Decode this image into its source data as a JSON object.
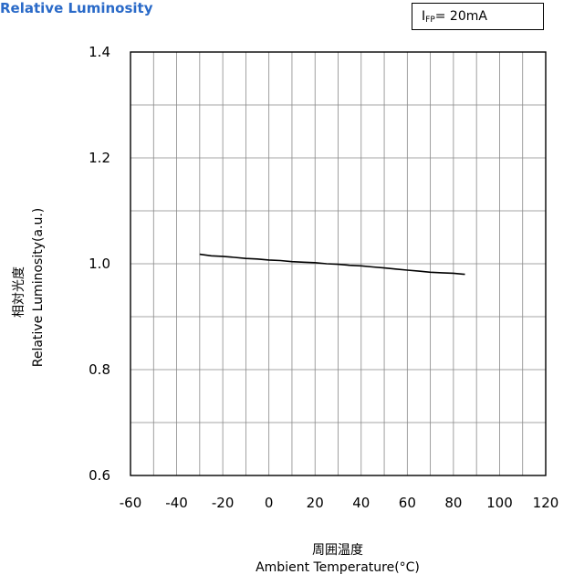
{
  "title": "Relative Luminosity",
  "condition": {
    "symbol": "I",
    "subscript": "FP",
    "value": "= 20mA"
  },
  "chart_data": {
    "type": "line",
    "title": "Relative Luminosity",
    "xlabel_jp": "周囲温度",
    "xlabel": "Ambient Temperature(°C)",
    "ylabel_jp": "相対光度",
    "ylabel": "Relative Luminosity(a.u.)",
    "xlim": [
      -60,
      120
    ],
    "ylim": [
      0.6,
      1.4
    ],
    "xticks": [
      "-60",
      "-40",
      "-20",
      "0",
      "20",
      "40",
      "60",
      "80",
      "100",
      "120"
    ],
    "yticks": [
      "0.6",
      "0.8",
      "1.0",
      "1.2",
      "1.4"
    ],
    "grid": true,
    "series": [
      {
        "x": [
          -30,
          -25,
          -20,
          -15,
          -10,
          -5,
          0,
          5,
          10,
          15,
          20,
          25,
          30,
          35,
          40,
          45,
          50,
          55,
          60,
          65,
          70,
          75,
          80,
          85
        ],
        "y": [
          1.018,
          1.015,
          1.014,
          1.012,
          1.01,
          1.009,
          1.007,
          1.006,
          1.004,
          1.003,
          1.002,
          1.0,
          0.999,
          0.997,
          0.996,
          0.994,
          0.992,
          0.99,
          0.988,
          0.986,
          0.984,
          0.983,
          0.982,
          0.98
        ]
      }
    ]
  }
}
